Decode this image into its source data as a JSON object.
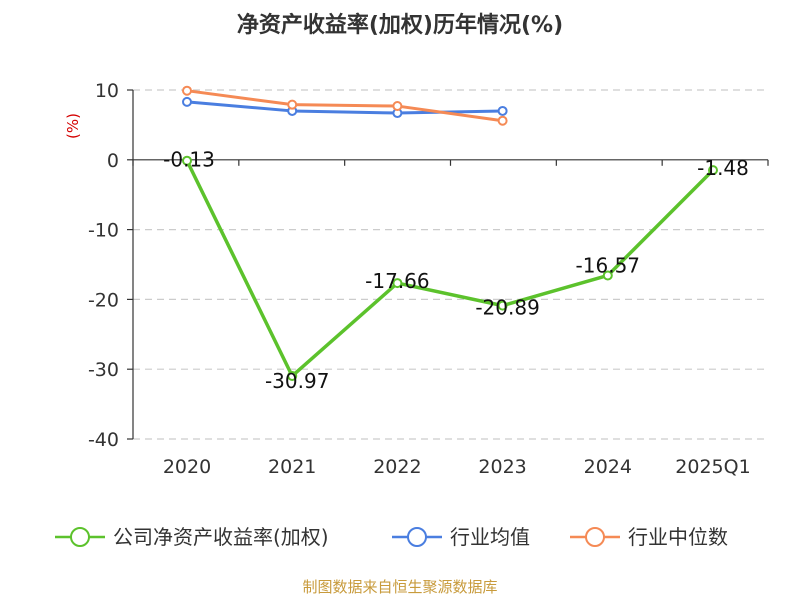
{
  "chart_data": {
    "type": "line",
    "title": "净资产收益率(加权)历年情况(%)",
    "ylabel": "(%)",
    "categories": [
      "2020",
      "2021",
      "2022",
      "2023",
      "2024",
      "2025Q1"
    ],
    "ylim": [
      -40,
      10
    ],
    "yticks": [
      10,
      0,
      -10,
      -20,
      -30,
      -40
    ],
    "ytick_labels": [
      "10",
      "0",
      "-10",
      "-20",
      "-30",
      "-40"
    ],
    "grid": true,
    "legend_position": "bottom",
    "series": [
      {
        "name": "公司净资产收益率(加权)",
        "color": "#5cc22c",
        "values": [
          -0.13,
          -30.97,
          -17.66,
          -20.89,
          -16.57,
          -1.48
        ],
        "data_labels": [
          "-0.13",
          "-30.97",
          "-17.66",
          "-20.89",
          "-16.57",
          "-1.48"
        ]
      },
      {
        "name": "行业均值",
        "color": "#4a7ee0",
        "values": [
          8.3,
          7.0,
          6.7,
          7.0,
          null,
          null
        ]
      },
      {
        "name": "行业中位数",
        "color": "#f58a55",
        "values": [
          9.9,
          7.9,
          7.7,
          5.6,
          null,
          null
        ]
      }
    ]
  },
  "source_note": "制图数据来自恒生聚源数据库"
}
